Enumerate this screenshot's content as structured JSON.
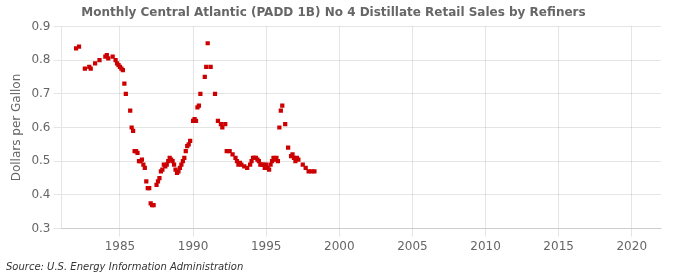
{
  "chart_data": {
    "type": "scatter",
    "title": "Monthly Central Atlantic (PADD 1B) No 4 Distillate Retail Sales by Refiners",
    "ylabel": "Dollars per Gallon",
    "annotations": [
      "Source: U.S. Energy Information Administration"
    ],
    "color": "#cc0000",
    "marker": "square",
    "grid": true,
    "xlim": [
      1981,
      2022
    ],
    "ylim": [
      0.3,
      0.9
    ],
    "xticks": [
      1985,
      1990,
      1995,
      2000,
      2005,
      2010,
      2015,
      2020
    ],
    "yticks": [
      0.3,
      0.4,
      0.5,
      0.6,
      0.7,
      0.8,
      0.9
    ],
    "x": [
      1982,
      1982.2,
      1982.6,
      1982.9,
      1983,
      1983.3,
      1983.6,
      1984,
      1984.1,
      1984.2,
      1984.5,
      1984.7,
      1984.8,
      1984.9,
      1985,
      1985.1,
      1985.2,
      1985.3,
      1985.4,
      1985.7,
      1985.8,
      1985.9,
      1986,
      1986.1,
      1986.2,
      1986.3,
      1986.4,
      1986.5,
      1986.6,
      1986.7,
      1986.8,
      1986.9,
      1987,
      1987.1,
      1987.2,
      1987.3,
      1987.5,
      1987.6,
      1987.7,
      1987.8,
      1987.9,
      1988,
      1988.1,
      1988.2,
      1988.3,
      1988.4,
      1988.5,
      1988.6,
      1988.7,
      1988.8,
      1988.9,
      1989,
      1989.1,
      1989.2,
      1989.3,
      1989.4,
      1989.5,
      1989.6,
      1989.7,
      1989.8,
      1990,
      1990.1,
      1990.2,
      1990.3,
      1990.4,
      1990.5,
      1990.8,
      1990.9,
      1991,
      1991.2,
      1991.5,
      1991.7,
      1991.9,
      1992,
      1992.2,
      1992.3,
      1992.5,
      1992.7,
      1992.9,
      1993,
      1993.1,
      1993.2,
      1993.3,
      1993.5,
      1993.7,
      1993.9,
      1994,
      1994.1,
      1994.2,
      1994.3,
      1994.4,
      1994.5,
      1994.6,
      1994.7,
      1994.8,
      1994.9,
      1995,
      1995.1,
      1995.2,
      1995.3,
      1995.4,
      1995.5,
      1995.6,
      1995.7,
      1995.8,
      1995.9,
      1996,
      1996.1,
      1996.3,
      1996.5,
      1996.7,
      1996.8,
      1996.9,
      1997,
      1997.1,
      1997.2,
      1997.5,
      1997.7,
      1997.9,
      1998.1,
      1998.3
    ],
    "values": [
      0.835,
      0.84,
      0.775,
      0.78,
      0.775,
      0.79,
      0.8,
      0.81,
      0.815,
      0.805,
      0.81,
      0.8,
      0.79,
      0.785,
      0.78,
      0.775,
      0.77,
      0.73,
      0.7,
      0.65,
      0.6,
      0.59,
      0.53,
      0.53,
      0.525,
      0.5,
      0.5,
      0.505,
      0.49,
      0.48,
      0.44,
      0.42,
      0.42,
      0.375,
      0.37,
      0.37,
      0.43,
      0.44,
      0.45,
      0.47,
      0.475,
      0.49,
      0.485,
      0.49,
      0.5,
      0.51,
      0.505,
      0.5,
      0.49,
      0.475,
      0.465,
      0.47,
      0.48,
      0.49,
      0.5,
      0.51,
      0.53,
      0.545,
      0.55,
      0.56,
      0.62,
      0.625,
      0.62,
      0.66,
      0.665,
      0.7,
      0.75,
      0.78,
      0.85,
      0.78,
      0.7,
      0.62,
      0.61,
      0.6,
      0.61,
      0.53,
      0.53,
      0.52,
      0.51,
      0.5,
      0.49,
      0.495,
      0.49,
      0.485,
      0.48,
      0.49,
      0.5,
      0.51,
      0.51,
      0.51,
      0.505,
      0.5,
      0.49,
      0.49,
      0.49,
      0.48,
      0.49,
      0.48,
      0.475,
      0.49,
      0.5,
      0.51,
      0.505,
      0.51,
      0.5,
      0.6,
      0.65,
      0.665,
      0.61,
      0.54,
      0.515,
      0.52,
      0.51,
      0.5,
      0.51,
      0.505,
      0.49,
      0.48,
      0.47,
      0.47,
      0.47
    ]
  }
}
